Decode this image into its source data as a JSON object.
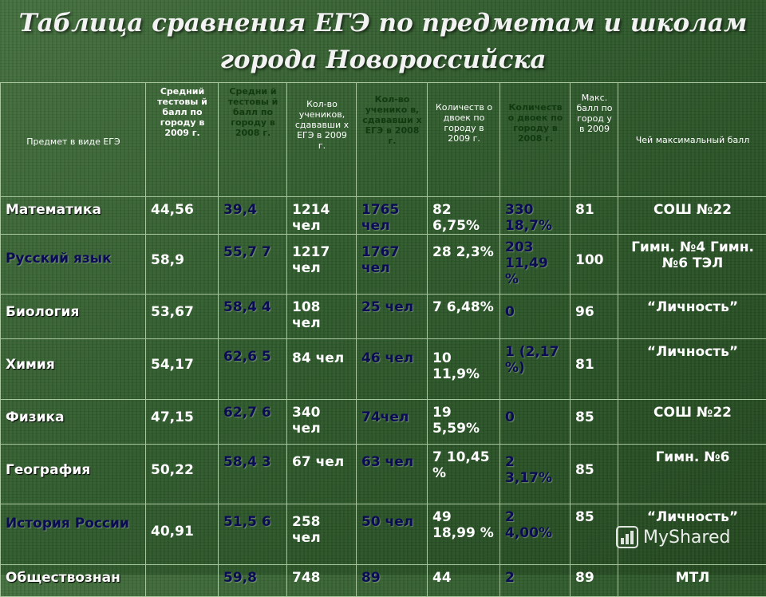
{
  "title": "Таблица сравнения ЕГЭ по предметам и школам города Новороссийска",
  "headers": [
    "Предмет в виде ЕГЭ",
    "Средний тестовы й балл по городу в 2009 г.",
    "Средни й тестовы й балл по городу в 2008 г.",
    "Кол-во учеников, сдававши х ЕГЭ в 2009 г.",
    "Кол-во ученико в, сдававши х ЕГЭ в 2008 г.",
    "Количеств о двоек по городу в 2009 г.",
    "Количеств о двоек по городу в 2008 г.",
    "Макс. балл по город у в 2009",
    "Чей максимальный балл"
  ],
  "rows": [
    {
      "subject": "Математика",
      "avg2009": "44,56",
      "avg2008": "39,4",
      "count2009": "1214 чел",
      "count2008": "1765 чел",
      "fails2009": "82 6,75%",
      "fails2008": "330 18,7%",
      "max": "81",
      "winner": "СОШ №22"
    },
    {
      "subject": "Русский язык",
      "avg2009": "58,9",
      "avg2008": "55,7 7",
      "count2009": "1217 чел",
      "count2008": "1767 чел",
      "fails2009": "28 2,3%",
      "fails2008": "203 11,49 %",
      "max": "100",
      "winner": "Гимн. №4 Гимн. №6 ТЭЛ"
    },
    {
      "subject": "Биология",
      "avg2009": "53,67",
      "avg2008": "58,4 4",
      "count2009": "108 чел",
      "count2008": "25 чел",
      "fails2009": "7 6,48%",
      "fails2008": "0",
      "max": "96",
      "winner": "“Личность”"
    },
    {
      "subject": "Химия",
      "avg2009": "54,17",
      "avg2008": "62,6 5",
      "count2009": "84 чел",
      "count2008": "46 чел",
      "fails2009": "10 11,9%",
      "fails2008": "1 (2,17 %)",
      "max": "81",
      "winner": "“Личность”"
    },
    {
      "subject": "Физика",
      "avg2009": "47,15",
      "avg2008": "62,7 6",
      "count2009": "340 чел",
      "count2008": "74чел",
      "fails2009": "19 5,59%",
      "fails2008": "0",
      "max": "85",
      "winner": "СОШ №22"
    },
    {
      "subject": "География",
      "avg2009": "50,22",
      "avg2008": "58,4 3",
      "count2009": "67 чел",
      "count2008": "63 чел",
      "fails2009": "7 10,45 %",
      "fails2008": "2 3,17%",
      "max": "85",
      "winner": "Гимн. №6"
    },
    {
      "subject": "История России",
      "avg2009": "40,91",
      "avg2008": "51,5 6",
      "count2009": "258 чел",
      "count2008": "50 чел",
      "fails2009": "49 18,99 %",
      "fails2008": "2 4,00%",
      "max": "85",
      "winner": "“Личность”"
    },
    {
      "subject": "Обществознан",
      "avg2009": "",
      "avg2008": "59,8",
      "count2009": "748",
      "count2008": "89",
      "fails2009": "44",
      "fails2008": "2",
      "max": "89",
      "winner": "МТЛ"
    }
  ],
  "watermark": "MyShared",
  "colors": {
    "background": "#2f5a2c",
    "dark_text": "#0b0b55",
    "border": "#a9c79e"
  }
}
